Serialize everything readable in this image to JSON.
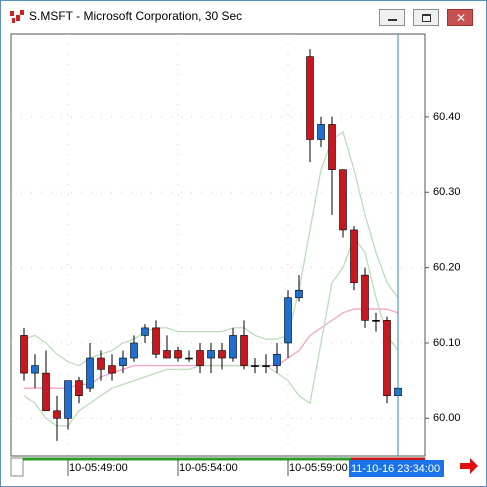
{
  "window": {
    "title": "S.MSFT - Microsoft Corporation, 30 Sec"
  },
  "chart_data": {
    "type": "candlestick",
    "categories": [
      null,
      null,
      null,
      null,
      "10-05:49:00",
      null,
      null,
      null,
      null,
      null,
      null,
      null,
      null,
      null,
      "10-05:54:00",
      null,
      null,
      null,
      null,
      null,
      null,
      null,
      null,
      null,
      "10-05:59:00",
      null,
      null,
      null,
      null,
      null,
      null,
      null,
      null,
      null,
      null
    ],
    "open": [
      60.11,
      60.06,
      60.06,
      60.01,
      60.0,
      60.05,
      60.04,
      60.08,
      60.07,
      60.07,
      60.08,
      60.11,
      60.12,
      60.09,
      60.09,
      60.08,
      60.09,
      60.08,
      60.09,
      60.08,
      60.11,
      60.07,
      60.07,
      60.07,
      60.1,
      60.16,
      60.48,
      60.37,
      60.39,
      60.33,
      60.25,
      60.19,
      60.13,
      60.13,
      60.03
    ],
    "high": [
      60.12,
      60.085,
      60.09,
      60.03,
      60.05,
      60.055,
      60.1,
      60.09,
      60.085,
      60.09,
      60.11,
      60.125,
      60.13,
      60.11,
      60.095,
      60.09,
      60.1,
      60.1,
      60.1,
      60.12,
      60.13,
      60.08,
      60.085,
      60.1,
      60.17,
      60.19,
      60.49,
      60.4,
      60.4,
      60.33,
      60.255,
      60.2,
      60.14,
      60.135,
      60.07
    ],
    "low": [
      60.05,
      60.04,
      60.01,
      59.97,
      59.985,
      60.02,
      60.035,
      60.05,
      60.05,
      60.06,
      60.075,
      60.1,
      60.08,
      60.08,
      60.075,
      60.075,
      60.06,
      60.06,
      60.065,
      60.075,
      60.065,
      60.06,
      60.06,
      60.06,
      60.08,
      60.155,
      60.34,
      60.36,
      60.27,
      60.24,
      60.17,
      60.12,
      60.115,
      60.02,
      60.02
    ],
    "close": [
      60.06,
      60.07,
      60.01,
      60.0,
      60.05,
      60.03,
      60.08,
      60.065,
      60.06,
      60.08,
      60.1,
      60.12,
      60.085,
      60.08,
      60.08,
      60.08,
      60.07,
      60.09,
      60.08,
      60.11,
      60.07,
      60.07,
      60.07,
      60.085,
      60.16,
      60.17,
      60.37,
      60.39,
      60.33,
      60.25,
      60.18,
      60.13,
      60.13,
      60.03,
      60.04
    ],
    "up_color": "#1e6fd0",
    "down_color": "#c8171e",
    "flat_color": "#000000",
    "series": [
      {
        "color": "#f3a3cc",
        "values": [
          60.04,
          60.04,
          60.04,
          60.04,
          60.04,
          60.045,
          60.045,
          60.055,
          60.06,
          60.065,
          60.07,
          60.07,
          60.07,
          60.07,
          60.07,
          60.07,
          60.07,
          60.07,
          60.07,
          60.07,
          60.07,
          60.07,
          60.07,
          60.07,
          60.08,
          60.09,
          60.11,
          60.12,
          60.13,
          60.14,
          60.145,
          60.145,
          60.145,
          60.145,
          60.14
        ]
      },
      {
        "color": "#bcdcbc",
        "values": [
          60.105,
          60.11,
          60.1,
          60.085,
          60.075,
          60.07,
          60.08,
          60.085,
          60.09,
          60.1,
          60.105,
          60.115,
          60.12,
          60.12,
          60.115,
          60.115,
          60.115,
          60.115,
          60.115,
          60.12,
          60.12,
          60.11,
          60.105,
          60.105,
          60.11,
          60.17,
          60.25,
          60.33,
          60.37,
          60.38,
          60.33,
          60.27,
          60.22,
          60.18,
          60.16
        ]
      },
      {
        "color": "#bcdcbc",
        "values": [
          60.03,
          60.02,
          60.0,
          59.99,
          59.99,
          60.01,
          60.02,
          60.03,
          60.04,
          60.045,
          60.05,
          60.055,
          60.06,
          60.065,
          60.065,
          60.065,
          60.07,
          60.07,
          60.07,
          60.07,
          60.07,
          60.07,
          60.07,
          60.06,
          60.05,
          60.03,
          60.02,
          60.1,
          60.18,
          60.2,
          60.24,
          60.22,
          60.16,
          60.11,
          60.09
        ]
      }
    ],
    "ylim": [
      59.95,
      60.51
    ],
    "yticks": [
      {
        "value": 60.0,
        "label": "60.00"
      },
      {
        "value": 60.1,
        "label": "60.10"
      },
      {
        "value": 60.2,
        "label": "60.20"
      },
      {
        "value": 60.3,
        "label": "60.30"
      },
      {
        "value": 60.4,
        "label": "60.40"
      }
    ],
    "grid": true,
    "crosshair_label": "11-10-16 23:34:00",
    "crosshair_color": "#2a8fa8",
    "crosshair_label_color": "#1a73e8"
  }
}
